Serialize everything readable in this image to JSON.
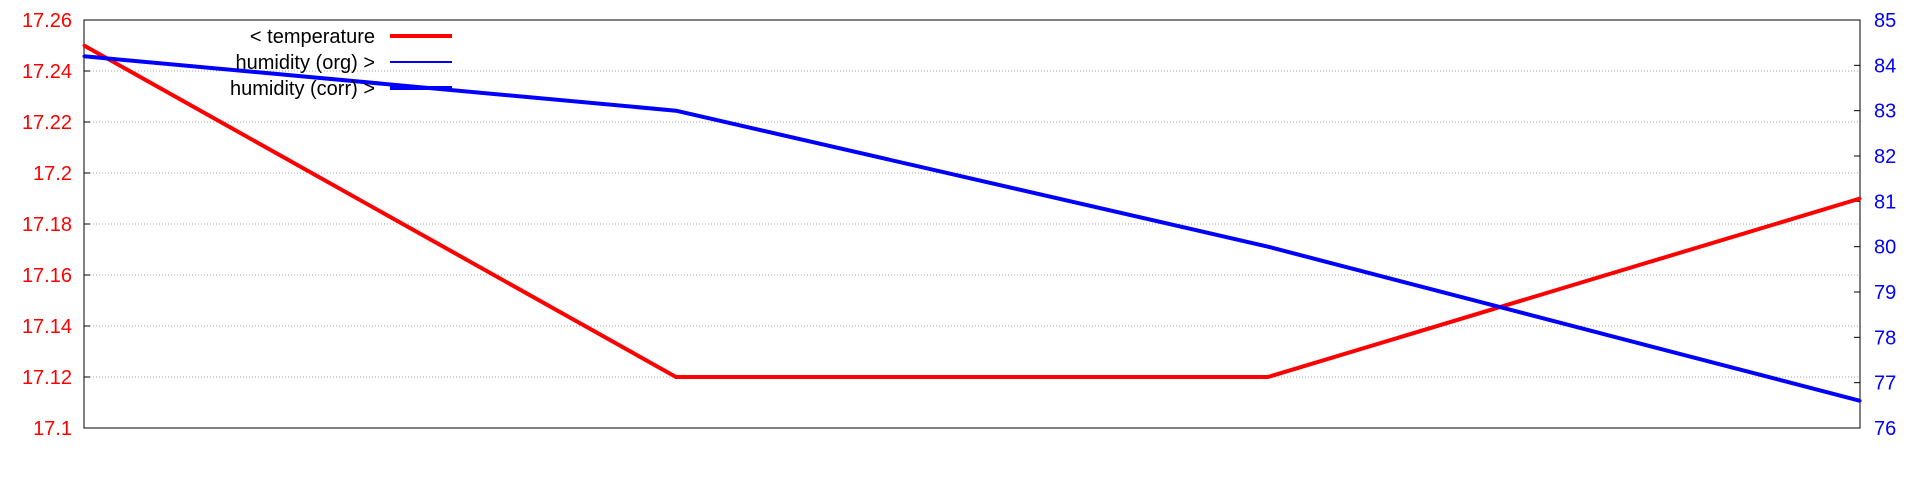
{
  "chart_data": {
    "type": "line",
    "x": [
      0,
      1,
      2,
      3
    ],
    "series": [
      {
        "name": "< temperature",
        "axis": "left",
        "color": "#ff0000",
        "values": [
          17.25,
          17.12,
          17.12,
          17.19
        ]
      },
      {
        "name": "humidity (org) >",
        "axis": "right",
        "color": "#0000ff",
        "values": [
          84.2,
          83.0,
          80.0,
          76.6
        ]
      },
      {
        "name": "humidity (corr) >",
        "axis": "right",
        "color": "#0000ff",
        "values": [
          84.2,
          83.0,
          80.0,
          76.6
        ]
      }
    ],
    "y_left": {
      "ylim": [
        17.1,
        17.26
      ],
      "ticks": [
        17.1,
        17.12,
        17.14,
        17.16,
        17.18,
        17.2,
        17.22,
        17.24,
        17.26
      ],
      "tick_labels": [
        "17.1",
        "17.12",
        "17.14",
        "17.16",
        "17.18",
        "17.2",
        "17.22",
        "17.24",
        "17.26"
      ],
      "color": "#ff0000"
    },
    "y_right": {
      "ylim": [
        76,
        85
      ],
      "ticks": [
        76,
        77,
        78,
        79,
        80,
        81,
        82,
        83,
        84,
        85
      ],
      "tick_labels": [
        "76",
        "77",
        "78",
        "79",
        "80",
        "81",
        "82",
        "83",
        "84",
        "85"
      ],
      "color": "#0000ff"
    },
    "grid": true,
    "legend_position": "top-left"
  }
}
